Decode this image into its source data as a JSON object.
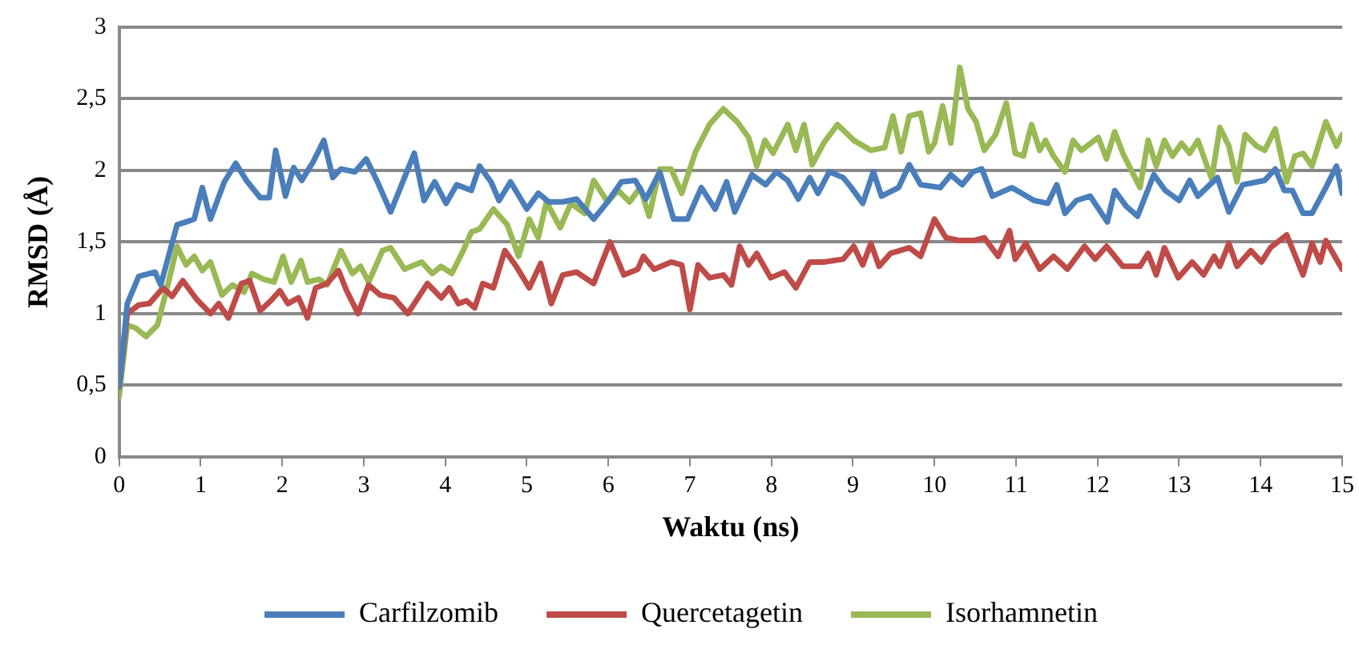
{
  "chart_data": {
    "type": "line",
    "xlabel": "Waktu (ns)",
    "ylabel": "RMSD (Å)",
    "xlim": [
      0,
      15
    ],
    "xticks": [
      0,
      1,
      2,
      3,
      4,
      5,
      6,
      7,
      8,
      9,
      10,
      11,
      12,
      13,
      14,
      15
    ],
    "ylim": [
      0,
      3
    ],
    "yticks": [
      0,
      {
        "value": 0.5,
        "label": "0,5"
      },
      1,
      {
        "value": 1.5,
        "label": "1,5"
      },
      2,
      {
        "value": 2.5,
        "label": "2,5"
      },
      3
    ],
    "grid": "y",
    "legend": "bottom",
    "marker": "none",
    "line_style": "solid",
    "series": [
      {
        "name": "Carfilzomib",
        "color": "#4a7ebb",
        "x": [
          0,
          0.1,
          0.24,
          0.44,
          0.51,
          0.71,
          0.82,
          0.92,
          1.02,
          1.12,
          1.29,
          1.43,
          1.56,
          1.73,
          1.84,
          1.92,
          2.04,
          2.14,
          2.24,
          2.38,
          2.51,
          2.62,
          2.72,
          2.89,
          3.03,
          3.16,
          3.33,
          3.5,
          3.62,
          3.74,
          3.87,
          4.01,
          4.14,
          4.32,
          4.42,
          4.56,
          4.66,
          4.8,
          5.0,
          5.14,
          5.27,
          5.44,
          5.61,
          5.82,
          5.99,
          6.16,
          6.33,
          6.46,
          6.63,
          6.8,
          6.97,
          7.14,
          7.31,
          7.45,
          7.55,
          7.76,
          7.93,
          8.06,
          8.2,
          8.33,
          8.47,
          8.57,
          8.71,
          8.88,
          8.98,
          9.12,
          9.25,
          9.35,
          9.56,
          9.69,
          9.83,
          10.07,
          10.2,
          10.34,
          10.47,
          10.58,
          10.71,
          10.95,
          11.22,
          11.39,
          11.5,
          11.6,
          11.74,
          11.91,
          12.12,
          12.21,
          12.35,
          12.49,
          12.69,
          12.83,
          13.0,
          13.13,
          13.23,
          13.47,
          13.61,
          13.78,
          14.05,
          14.18,
          14.29,
          14.39,
          14.52,
          14.63,
          14.8,
          14.93,
          15
        ],
        "values": [
          0.49,
          1.07,
          1.26,
          1.29,
          1.2,
          1.62,
          1.64,
          1.66,
          1.88,
          1.66,
          1.92,
          2.05,
          1.93,
          1.81,
          1.81,
          2.14,
          1.82,
          2.02,
          1.93,
          2.06,
          2.21,
          1.95,
          2.01,
          1.99,
          2.08,
          1.93,
          1.71,
          1.95,
          2.12,
          1.79,
          1.92,
          1.77,
          1.9,
          1.86,
          2.03,
          1.92,
          1.79,
          1.92,
          1.73,
          1.84,
          1.78,
          1.78,
          1.8,
          1.66,
          1.78,
          1.92,
          1.93,
          1.8,
          1.99,
          1.66,
          1.66,
          1.88,
          1.73,
          1.92,
          1.71,
          1.97,
          1.9,
          1.99,
          1.93,
          1.8,
          1.95,
          1.84,
          1.99,
          1.95,
          1.88,
          1.77,
          1.99,
          1.82,
          1.88,
          2.04,
          1.9,
          1.88,
          1.97,
          1.9,
          1.99,
          2.01,
          1.82,
          1.88,
          1.79,
          1.77,
          1.9,
          1.7,
          1.79,
          1.82,
          1.64,
          1.86,
          1.75,
          1.68,
          1.97,
          1.86,
          1.79,
          1.93,
          1.82,
          1.95,
          1.71,
          1.9,
          1.93,
          2.01,
          1.86,
          1.86,
          1.7,
          1.7,
          1.88,
          2.03,
          1.84
        ]
      },
      {
        "name": "Quercetagetin",
        "color": "#be4b48",
        "x": [
          0,
          0.1,
          0.24,
          0.37,
          0.54,
          0.65,
          0.78,
          0.95,
          1.12,
          1.22,
          1.34,
          1.5,
          1.6,
          1.73,
          1.86,
          1.97,
          2.07,
          2.2,
          2.31,
          2.41,
          2.55,
          2.69,
          2.79,
          2.93,
          3.06,
          3.2,
          3.37,
          3.54,
          3.78,
          3.95,
          4.05,
          4.16,
          4.26,
          4.36,
          4.46,
          4.59,
          4.73,
          4.87,
          5.03,
          5.17,
          5.3,
          5.44,
          5.61,
          5.82,
          6.02,
          6.19,
          6.36,
          6.43,
          6.56,
          6.77,
          6.9,
          7.0,
          7.1,
          7.24,
          7.41,
          7.51,
          7.61,
          7.72,
          7.82,
          7.99,
          8.16,
          8.3,
          8.47,
          8.64,
          8.88,
          9.01,
          9.12,
          9.22,
          9.32,
          9.46,
          9.69,
          9.83,
          10.0,
          10.14,
          10.31,
          10.48,
          10.61,
          10.78,
          10.92,
          10.99,
          11.12,
          11.29,
          11.46,
          11.63,
          11.84,
          11.97,
          12.11,
          12.31,
          12.52,
          12.62,
          12.72,
          12.82,
          12.99,
          13.16,
          13.3,
          13.43,
          13.5,
          13.61,
          13.71,
          13.88,
          14.01,
          14.12,
          14.32,
          14.52,
          14.63,
          14.73,
          14.8,
          15
        ],
        "values": [
          0.49,
          1.0,
          1.06,
          1.07,
          1.18,
          1.12,
          1.23,
          1.1,
          1.0,
          1.07,
          0.97,
          1.21,
          1.23,
          1.02,
          1.09,
          1.16,
          1.07,
          1.11,
          0.97,
          1.18,
          1.21,
          1.3,
          1.16,
          1.0,
          1.2,
          1.13,
          1.11,
          1.0,
          1.21,
          1.11,
          1.18,
          1.07,
          1.09,
          1.04,
          1.21,
          1.18,
          1.44,
          1.33,
          1.18,
          1.35,
          1.07,
          1.27,
          1.29,
          1.21,
          1.5,
          1.27,
          1.31,
          1.4,
          1.31,
          1.36,
          1.34,
          1.03,
          1.34,
          1.25,
          1.27,
          1.2,
          1.47,
          1.34,
          1.42,
          1.25,
          1.29,
          1.18,
          1.36,
          1.36,
          1.38,
          1.47,
          1.34,
          1.49,
          1.33,
          1.42,
          1.46,
          1.4,
          1.66,
          1.53,
          1.51,
          1.51,
          1.53,
          1.4,
          1.58,
          1.38,
          1.49,
          1.31,
          1.4,
          1.31,
          1.47,
          1.38,
          1.47,
          1.33,
          1.33,
          1.42,
          1.27,
          1.46,
          1.25,
          1.36,
          1.27,
          1.4,
          1.33,
          1.49,
          1.33,
          1.44,
          1.36,
          1.46,
          1.55,
          1.27,
          1.49,
          1.36,
          1.51,
          1.31
        ]
      },
      {
        "name": "Isorhamnetin",
        "color": "#98b954",
        "x": [
          0,
          0.1,
          0.2,
          0.33,
          0.47,
          0.61,
          0.71,
          0.82,
          0.92,
          1.02,
          1.12,
          1.26,
          1.39,
          1.53,
          1.63,
          1.77,
          1.9,
          2.01,
          2.11,
          2.23,
          2.31,
          2.45,
          2.55,
          2.72,
          2.86,
          2.96,
          3.06,
          3.23,
          3.33,
          3.5,
          3.71,
          3.84,
          3.95,
          4.08,
          4.22,
          4.32,
          4.42,
          4.59,
          4.76,
          4.9,
          5.03,
          5.14,
          5.24,
          5.41,
          5.54,
          5.71,
          5.82,
          5.99,
          6.12,
          6.26,
          6.39,
          6.5,
          6.63,
          6.77,
          6.9,
          7.07,
          7.24,
          7.41,
          7.58,
          7.72,
          7.82,
          7.92,
          8.02,
          8.2,
          8.3,
          8.4,
          8.5,
          8.64,
          8.81,
          9.01,
          9.22,
          9.39,
          9.49,
          9.59,
          9.69,
          9.83,
          9.93,
          10.0,
          10.1,
          10.2,
          10.31,
          10.41,
          10.51,
          10.61,
          10.75,
          10.88,
          10.99,
          11.09,
          11.19,
          11.29,
          11.36,
          11.46,
          11.6,
          11.7,
          11.8,
          12.01,
          12.11,
          12.21,
          12.31,
          12.52,
          12.62,
          12.72,
          12.82,
          12.92,
          13.03,
          13.13,
          13.23,
          13.4,
          13.5,
          13.61,
          13.71,
          13.81,
          13.95,
          14.05,
          14.18,
          14.32,
          14.42,
          14.52,
          14.63,
          14.8,
          14.93,
          15
        ],
        "values": [
          0.42,
          0.92,
          0.9,
          0.84,
          0.92,
          1.23,
          1.47,
          1.34,
          1.4,
          1.3,
          1.36,
          1.13,
          1.2,
          1.15,
          1.28,
          1.24,
          1.22,
          1.4,
          1.22,
          1.37,
          1.22,
          1.24,
          1.2,
          1.44,
          1.28,
          1.33,
          1.22,
          1.44,
          1.46,
          1.31,
          1.36,
          1.28,
          1.33,
          1.28,
          1.44,
          1.57,
          1.59,
          1.73,
          1.62,
          1.4,
          1.66,
          1.53,
          1.78,
          1.6,
          1.77,
          1.7,
          1.93,
          1.78,
          1.86,
          1.78,
          1.88,
          1.68,
          2.01,
          2.01,
          1.84,
          2.13,
          2.32,
          2.43,
          2.34,
          2.23,
          2.03,
          2.21,
          2.12,
          2.32,
          2.14,
          2.32,
          2.04,
          2.19,
          2.32,
          2.21,
          2.14,
          2.16,
          2.38,
          2.13,
          2.38,
          2.4,
          2.13,
          2.19,
          2.45,
          2.19,
          2.72,
          2.43,
          2.34,
          2.14,
          2.25,
          2.47,
          2.12,
          2.1,
          2.32,
          2.14,
          2.21,
          2.1,
          1.99,
          2.21,
          2.14,
          2.23,
          2.08,
          2.27,
          2.12,
          1.88,
          2.21,
          2.03,
          2.21,
          2.1,
          2.19,
          2.12,
          2.21,
          1.94,
          2.3,
          2.17,
          1.92,
          2.25,
          2.17,
          2.14,
          2.29,
          1.92,
          2.1,
          2.12,
          2.03,
          2.34,
          2.17,
          2.25
        ]
      }
    ]
  }
}
